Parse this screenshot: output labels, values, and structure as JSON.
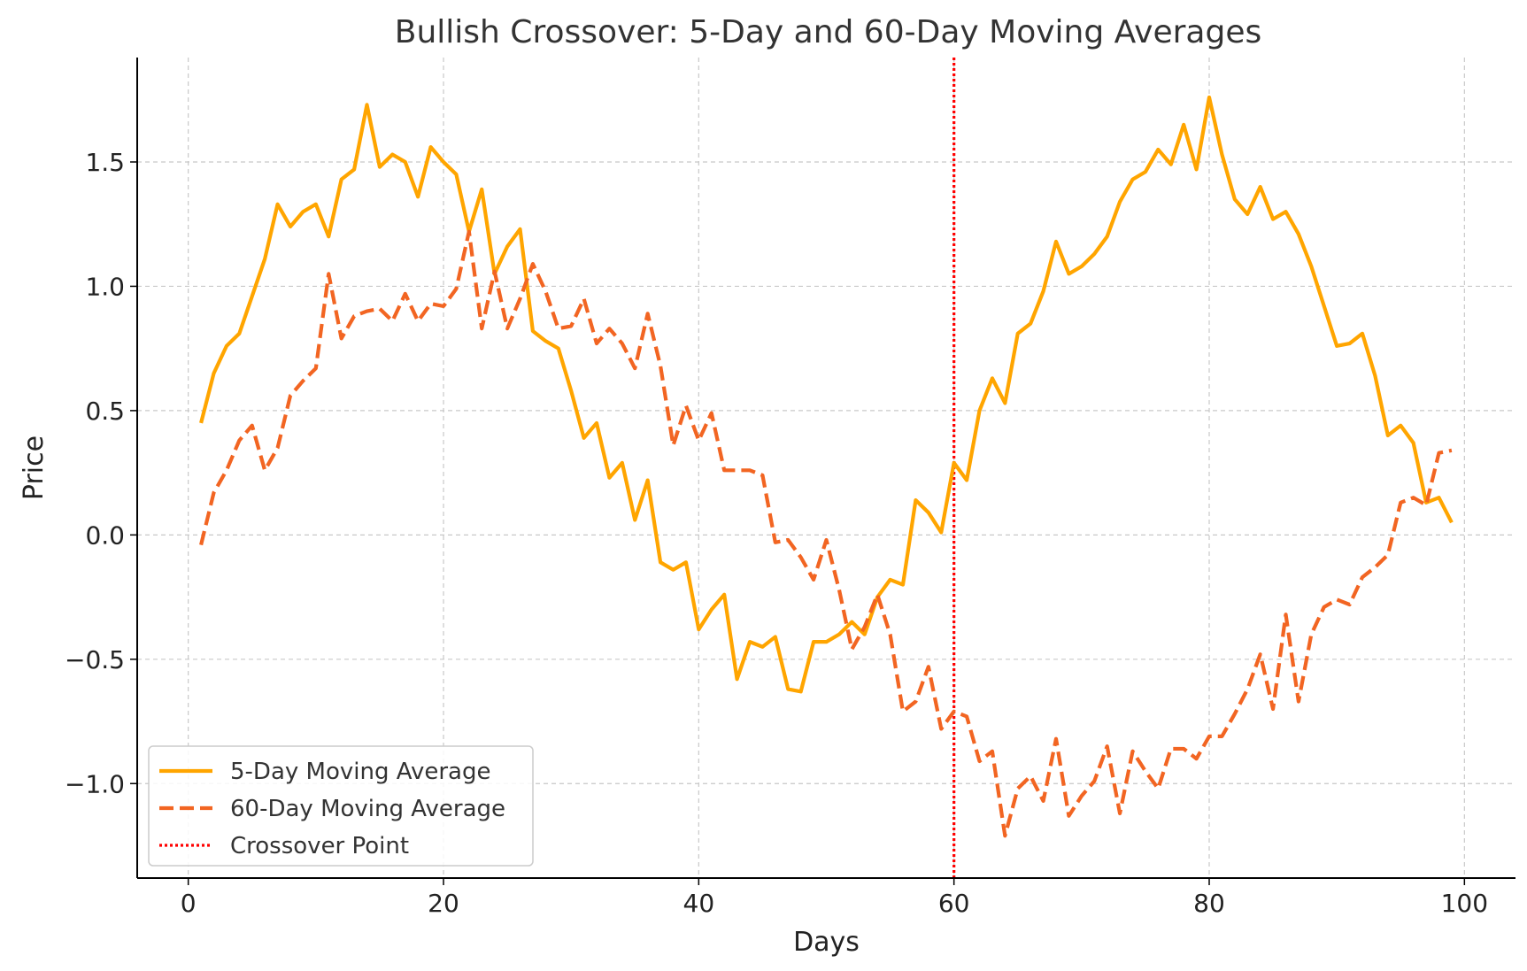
{
  "chart_data": {
    "type": "line",
    "title": "Bullish Crossover: 5-Day and 60-Day Moving Averages",
    "xlabel": "Days",
    "ylabel": "Price",
    "xlim": [
      -4,
      104
    ],
    "ylim": [
      -1.38,
      1.92
    ],
    "xticks": [
      0,
      20,
      40,
      60,
      80,
      100
    ],
    "xtick_labels": [
      "0",
      "20",
      "40",
      "60",
      "80",
      "100"
    ],
    "yticks": [
      -1.0,
      -0.5,
      0.0,
      0.5,
      1.0,
      1.5
    ],
    "ytick_labels": [
      "−1.0",
      "−0.5",
      "0.0",
      "0.5",
      "1.0",
      "1.5"
    ],
    "grid": true,
    "legend_position": "lower-left",
    "x": [
      1,
      2,
      3,
      4,
      5,
      6,
      7,
      8,
      9,
      10,
      11,
      12,
      13,
      14,
      15,
      16,
      17,
      18,
      19,
      20,
      21,
      22,
      23,
      24,
      25,
      26,
      27,
      28,
      29,
      30,
      31,
      32,
      33,
      34,
      35,
      36,
      37,
      38,
      39,
      40,
      41,
      42,
      43,
      44,
      45,
      46,
      47,
      48,
      49,
      50,
      51,
      52,
      53,
      54,
      55,
      56,
      57,
      58,
      59,
      60,
      61,
      62,
      63,
      64,
      65,
      66,
      67,
      68,
      69,
      70,
      71,
      72,
      73,
      74,
      75,
      76,
      77,
      78,
      79,
      80,
      81,
      82,
      83,
      84,
      85,
      86,
      87,
      88,
      89,
      90,
      91,
      92,
      93,
      94,
      95,
      96,
      97,
      98,
      99
    ],
    "series": [
      {
        "name": "5-Day Moving Average",
        "color": "#FFA500",
        "style": "solid",
        "values": [
          0.45,
          0.65,
          0.76,
          0.81,
          0.96,
          1.11,
          1.33,
          1.24,
          1.3,
          1.33,
          1.2,
          1.43,
          1.47,
          1.73,
          1.48,
          1.53,
          1.5,
          1.36,
          1.56,
          1.5,
          1.45,
          1.22,
          1.39,
          1.05,
          1.16,
          1.23,
          0.82,
          0.78,
          0.75,
          0.58,
          0.39,
          0.45,
          0.23,
          0.29,
          0.06,
          0.22,
          -0.11,
          -0.14,
          -0.11,
          -0.38,
          -0.3,
          -0.24,
          -0.58,
          -0.43,
          -0.45,
          -0.41,
          -0.62,
          -0.63,
          -0.43,
          -0.43,
          -0.4,
          -0.35,
          -0.4,
          -0.25,
          -0.18,
          -0.2,
          0.14,
          0.09,
          0.01,
          0.29,
          0.22,
          0.5,
          0.63,
          0.53,
          0.81,
          0.85,
          0.98,
          1.18,
          1.05,
          1.08,
          1.13,
          1.2,
          1.34,
          1.43,
          1.46,
          1.55,
          1.49,
          1.65,
          1.47,
          1.76,
          1.53,
          1.35,
          1.29,
          1.4,
          1.27,
          1.3,
          1.21,
          1.08,
          0.92,
          0.76,
          0.77,
          0.81,
          0.64,
          0.4,
          0.44,
          0.37,
          0.13,
          0.15,
          0.05
        ]
      },
      {
        "name": "60-Day Moving Average",
        "color": "#F26522",
        "style": "dashed",
        "values": [
          -0.04,
          0.17,
          0.26,
          0.38,
          0.44,
          0.26,
          0.35,
          0.56,
          0.62,
          0.67,
          1.05,
          0.79,
          0.88,
          0.9,
          0.91,
          0.86,
          0.97,
          0.86,
          0.93,
          0.92,
          0.99,
          1.22,
          0.83,
          1.06,
          0.83,
          0.95,
          1.09,
          0.98,
          0.83,
          0.84,
          0.95,
          0.77,
          0.83,
          0.77,
          0.67,
          0.89,
          0.68,
          0.36,
          0.52,
          0.38,
          0.49,
          0.26,
          0.26,
          0.26,
          0.24,
          -0.03,
          -0.02,
          -0.09,
          -0.18,
          -0.02,
          -0.22,
          -0.46,
          -0.37,
          -0.24,
          -0.4,
          -0.71,
          -0.67,
          -0.53,
          -0.78,
          -0.71,
          -0.73,
          -0.91,
          -0.87,
          -1.21,
          -1.02,
          -0.97,
          -1.07,
          -0.82,
          -1.13,
          -1.05,
          -0.99,
          -0.85,
          -1.12,
          -0.87,
          -0.95,
          -1.02,
          -0.86,
          -0.86,
          -0.9,
          -0.81,
          -0.81,
          -0.72,
          -0.62,
          -0.48,
          -0.7,
          -0.32,
          -0.67,
          -0.4,
          -0.29,
          -0.26,
          -0.28,
          -0.17,
          -0.13,
          -0.08,
          0.13,
          0.15,
          0.12,
          0.33,
          0.34
        ]
      }
    ],
    "annotations": [
      {
        "name": "Crossover Point",
        "type": "vline",
        "x": 60,
        "color": "#FF0000",
        "style": "dotted"
      }
    ]
  }
}
